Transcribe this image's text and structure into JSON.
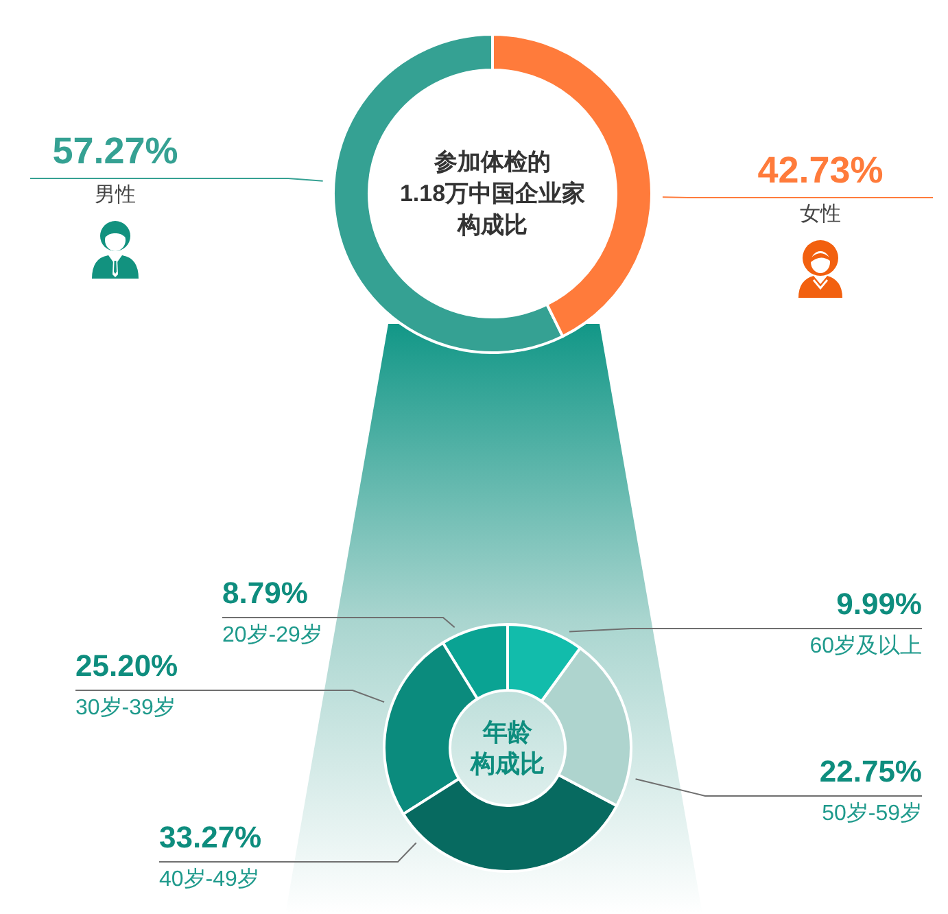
{
  "chart_data": [
    {
      "type": "donut",
      "title": "参加体检的1.18万中国企业家构成比",
      "categories": [
        "男性",
        "女性"
      ],
      "values": [
        57.27,
        42.73
      ],
      "colors": [
        "#35a193",
        "#ff7b3b"
      ],
      "value_labels": [
        "57.27%",
        "42.73%"
      ]
    },
    {
      "type": "donut",
      "title": "年龄构成比",
      "categories": [
        "20岁-29岁",
        "30岁-39岁",
        "40岁-49岁",
        "50岁-59岁",
        "60岁及以上"
      ],
      "values": [
        8.79,
        25.2,
        33.27,
        22.75,
        9.99
      ],
      "colors": [
        "#0aa393",
        "#0b8b7d",
        "#076a60",
        "#aed4ce",
        "#12bcab"
      ],
      "value_labels": [
        "8.79%",
        "25.20%",
        "33.27%",
        "22.75%",
        "9.99%"
      ]
    }
  ]
}
